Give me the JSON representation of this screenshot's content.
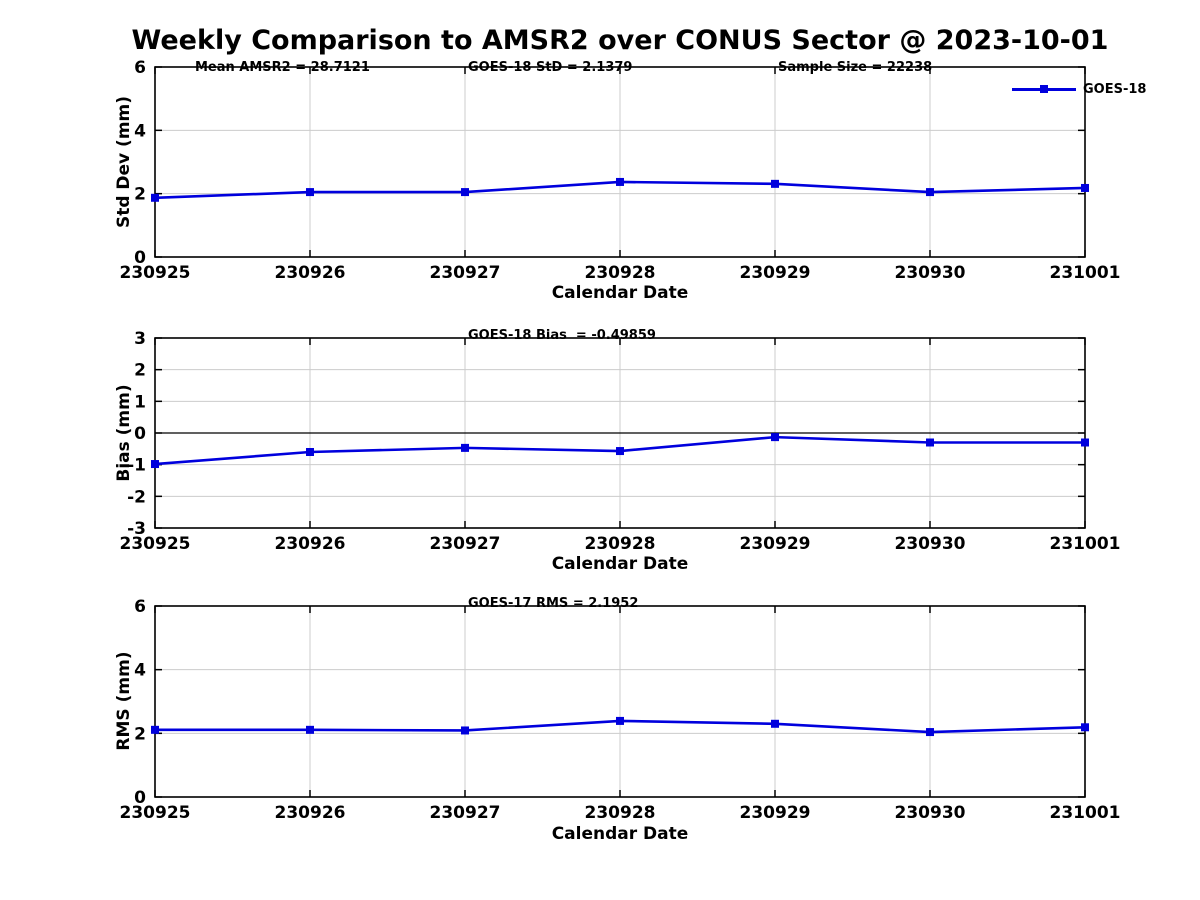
{
  "figure": {
    "title": "Weekly Comparison to AMSR2 over CONUS Sector @ 2023-10-01"
  },
  "legend": {
    "label": "GOES-18",
    "position": "top-right-of-first-subplot"
  },
  "colors": {
    "line": "#0000dd",
    "marker": "#0000dd",
    "grid": "#cccccc",
    "axis": "#000000",
    "zero_line": "#000000",
    "text": "#000000",
    "background": "#ffffff"
  },
  "chart_data": [
    {
      "type": "line",
      "name": "std-dev",
      "annotations": [
        {
          "text": "Mean AMSR2 = 28.7121"
        },
        {
          "text": "GOES-18 StD = 2.1379"
        },
        {
          "text": "Sample Size = 22238"
        }
      ],
      "categories": [
        "230925",
        "230926",
        "230927",
        "230928",
        "230929",
        "230930",
        "231001"
      ],
      "series": [
        {
          "name": "GOES-18",
          "values": [
            1.87,
            2.05,
            2.05,
            2.37,
            2.31,
            2.05,
            2.18
          ]
        }
      ],
      "xlabel": "Calendar Date",
      "ylabel": "Std Dev (mm)",
      "ylim": [
        0,
        6
      ],
      "yticks": [
        0,
        2,
        4,
        6
      ],
      "grid": true,
      "zero_line": false
    },
    {
      "type": "line",
      "name": "bias",
      "title": "GOES-18 Bias  = -0.49859",
      "categories": [
        "230925",
        "230926",
        "230927",
        "230928",
        "230929",
        "230930",
        "231001"
      ],
      "series": [
        {
          "name": "GOES-18",
          "values": [
            -0.98,
            -0.6,
            -0.47,
            -0.57,
            -0.13,
            -0.3,
            -0.3
          ]
        }
      ],
      "xlabel": "Calendar Date",
      "ylabel": "Bias (mm)",
      "ylim": [
        -3,
        3
      ],
      "yticks": [
        -3,
        -2,
        -1,
        0,
        1,
        2,
        3
      ],
      "grid": true,
      "zero_line": true
    },
    {
      "type": "line",
      "name": "rms",
      "title": "GOES-17 RMS = 2.1952",
      "categories": [
        "230925",
        "230926",
        "230927",
        "230928",
        "230929",
        "230930",
        "231001"
      ],
      "series": [
        {
          "name": "GOES-18",
          "values": [
            2.11,
            2.11,
            2.09,
            2.39,
            2.3,
            2.04,
            2.19
          ]
        }
      ],
      "xlabel": "Calendar Date",
      "ylabel": "RMS (mm)",
      "ylim": [
        0,
        6
      ],
      "yticks": [
        0,
        2,
        4,
        6
      ],
      "grid": true,
      "zero_line": false
    }
  ]
}
